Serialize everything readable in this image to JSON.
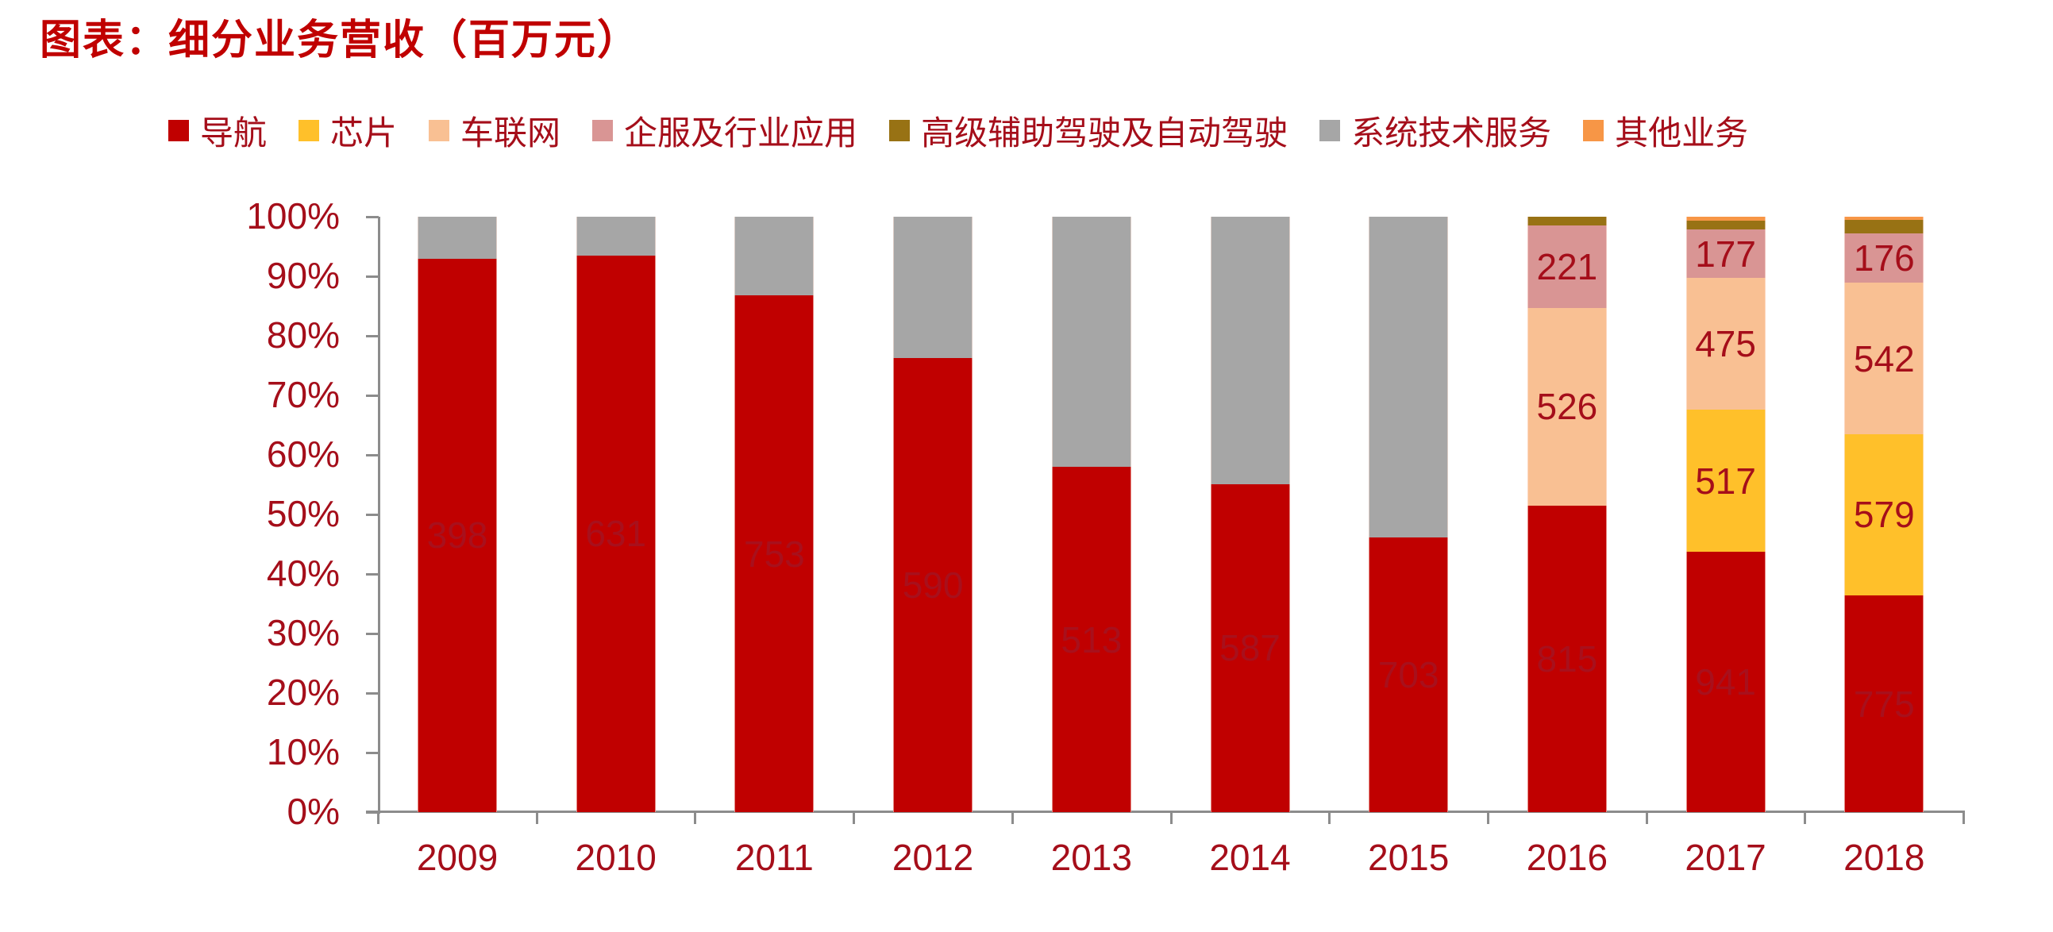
{
  "title": "图表：细分业务营收（百万元）",
  "legend": [
    {
      "key": "nav",
      "label": "导航",
      "color": "#c00000"
    },
    {
      "key": "chip",
      "label": "芯片",
      "color": "#ffc02a"
    },
    {
      "key": "iov",
      "label": "车联网",
      "color": "#f9c093"
    },
    {
      "key": "ent",
      "label": "企服及行业应用",
      "color": "#d99594"
    },
    {
      "key": "adas",
      "label": "高级辅助驾驶及自动驾驶",
      "color": "#987214"
    },
    {
      "key": "sys",
      "label": "系统技术服务",
      "color": "#a6a6a6"
    },
    {
      "key": "other",
      "label": "其他业务",
      "color": "#f79646"
    }
  ],
  "y_ticks": [
    "0%",
    "10%",
    "20%",
    "30%",
    "40%",
    "50%",
    "60%",
    "70%",
    "80%",
    "90%",
    "100%"
  ],
  "chart_data": {
    "type": "bar",
    "stacked": "percent",
    "title": "图表：细分业务营收（百万元）",
    "xlabel": "",
    "ylabel": "",
    "ylim": [
      0,
      100
    ],
    "grid": false,
    "legend_position": "top",
    "categories": [
      "2009",
      "2010",
      "2011",
      "2012",
      "2013",
      "2014",
      "2015",
      "2016",
      "2017",
      "2018"
    ],
    "series": [
      {
        "name": "导航",
        "key": "nav",
        "share_pct": [
          93.0,
          93.5,
          86.8,
          76.3,
          58.0,
          55.1,
          46.1,
          51.5,
          43.7,
          36.4
        ],
        "labels": [
          "398",
          "631",
          "753",
          "590",
          "513",
          "587",
          "703",
          "815",
          "941",
          "775"
        ]
      },
      {
        "name": "芯片",
        "key": "chip",
        "share_pct": [
          0,
          0,
          0,
          0,
          0,
          0,
          0,
          0,
          23.9,
          27.1
        ],
        "labels": [
          "",
          "",
          "",
          "",
          "",
          "",
          "",
          "",
          "517",
          "579"
        ]
      },
      {
        "name": "车联网",
        "key": "iov",
        "share_pct": [
          0,
          0,
          0,
          0,
          0,
          0,
          0,
          33.2,
          22.1,
          25.4
        ],
        "labels": [
          "",
          "",
          "",
          "",
          "",
          "",
          "",
          "526",
          "475",
          "542"
        ]
      },
      {
        "name": "企服及行业应用",
        "key": "ent",
        "share_pct": [
          0,
          0,
          0,
          0,
          0,
          0,
          0,
          13.9,
          8.2,
          8.3
        ],
        "labels": [
          "",
          "",
          "",
          "",
          "",
          "",
          "",
          "221",
          "177",
          "176"
        ]
      },
      {
        "name": "高级辅助驾驶及自动驾驶",
        "key": "adas",
        "share_pct": [
          0,
          0,
          0,
          0,
          0,
          0,
          0,
          1.4,
          1.5,
          2.3
        ],
        "labels": [
          "",
          "",
          "",
          "",
          "",
          "",
          "",
          "",
          "",
          ""
        ]
      },
      {
        "name": "系统技术服务",
        "key": "sys",
        "share_pct": [
          7.0,
          6.5,
          13.2,
          23.7,
          42.0,
          44.9,
          53.9,
          0,
          0,
          0
        ],
        "labels": [
          "",
          "",
          "",
          "",
          "",
          "",
          "",
          "",
          "",
          ""
        ]
      },
      {
        "name": "其他业务",
        "key": "other",
        "share_pct": [
          0,
          0,
          0,
          0,
          0,
          0,
          0,
          0,
          0.6,
          0.5
        ],
        "labels": [
          "",
          "",
          "",
          "",
          "",
          "",
          "",
          "",
          "",
          ""
        ]
      }
    ]
  }
}
